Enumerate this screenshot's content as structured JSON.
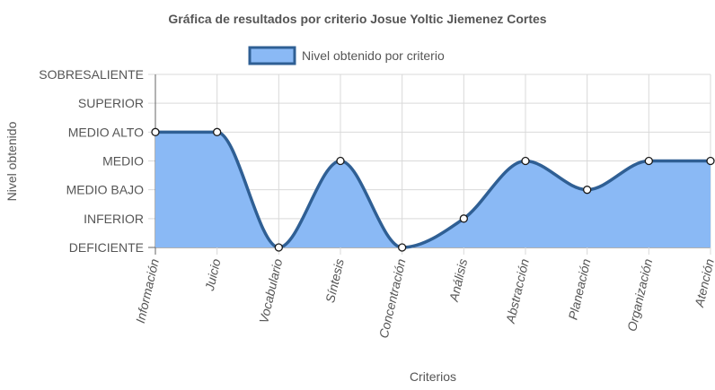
{
  "chart_data": {
    "type": "area",
    "title": "Gráfica de resultados por criterio Josue Yoltic Jiemenez Cortes",
    "xlabel": "Criterios",
    "ylabel": "Nivel obtenido",
    "categories": [
      "Información",
      "Juicio",
      "Vocabulario",
      "Síntesis",
      "Concentración",
      "Análisis",
      "Abstracción",
      "Planeación",
      "Organización",
      "Atención"
    ],
    "y_levels": [
      "DEFICIENTE",
      "INFERIOR",
      "MEDIO BAJO",
      "MEDIO",
      "MEDIO ALTO",
      "SUPERIOR",
      "SOBRESALIENTE"
    ],
    "ylim": [
      0,
      6
    ],
    "series": [
      {
        "name": "Nivel obtenido por criterio",
        "values": [
          4,
          4,
          0,
          3,
          0,
          1,
          3,
          2,
          3,
          3
        ]
      }
    ],
    "legend": "top",
    "grid": true,
    "colors": {
      "fill": "#8ab9f5",
      "line": "#2f5f94",
      "point_fill": "#ffffff",
      "point_stroke": "#1a1a1a",
      "grid": "#d9d9d9",
      "axis": "#666666"
    }
  }
}
